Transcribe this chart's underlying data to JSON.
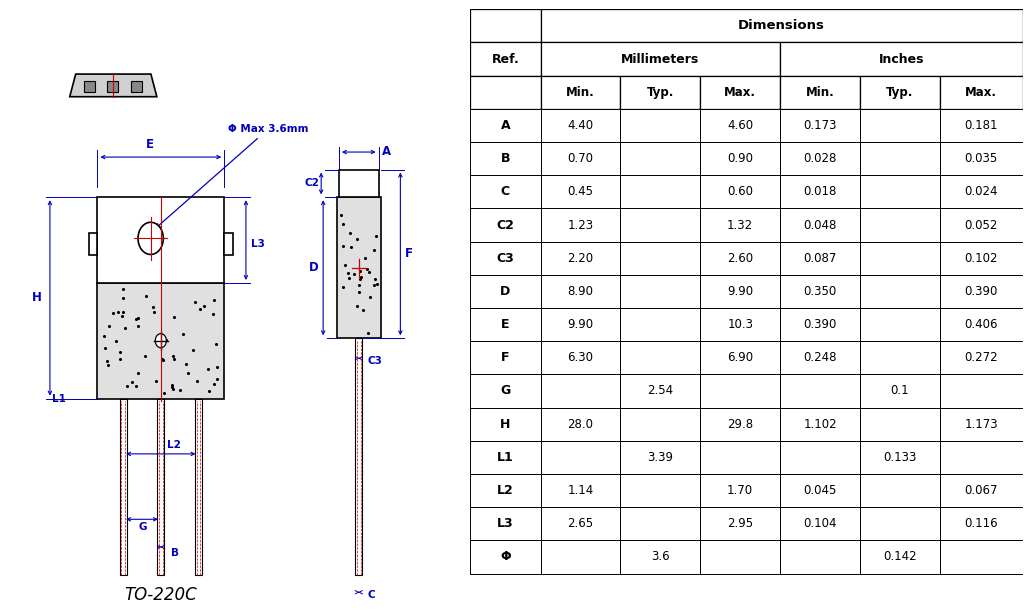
{
  "title": "TO-220C",
  "table_data": [
    [
      "A",
      "4.40",
      "",
      "4.60",
      "0.173",
      "",
      "0.181"
    ],
    [
      "B",
      "0.70",
      "",
      "0.90",
      "0.028",
      "",
      "0.035"
    ],
    [
      "C",
      "0.45",
      "",
      "0.60",
      "0.018",
      "",
      "0.024"
    ],
    [
      "C2",
      "1.23",
      "",
      "1.32",
      "0.048",
      "",
      "0.052"
    ],
    [
      "C3",
      "2.20",
      "",
      "2.60",
      "0.087",
      "",
      "0.102"
    ],
    [
      "D",
      "8.90",
      "",
      "9.90",
      "0.350",
      "",
      "0.390"
    ],
    [
      "E",
      "9.90",
      "",
      "10.3",
      "0.390",
      "",
      "0.406"
    ],
    [
      "F",
      "6.30",
      "",
      "6.90",
      "0.248",
      "",
      "0.272"
    ],
    [
      "G",
      "",
      "2.54",
      "",
      "",
      "0.1",
      ""
    ],
    [
      "H",
      "28.0",
      "",
      "29.8",
      "1.102",
      "",
      "1.173"
    ],
    [
      "L1",
      "",
      "3.39",
      "",
      "",
      "0.133",
      ""
    ],
    [
      "L2",
      "1.14",
      "",
      "1.70",
      "0.045",
      "",
      "0.067"
    ],
    [
      "L3",
      "2.65",
      "",
      "2.95",
      "0.104",
      "",
      "0.116"
    ],
    [
      "Φ",
      "",
      "3.6",
      "",
      "",
      "0.142",
      ""
    ]
  ],
  "blue": "#0000BB",
  "red": "#CC0000",
  "black": "#000000",
  "white": "#FFFFFF",
  "light_gray": "#E0E0E0",
  "phi_label": "Φ Max 3.6mm"
}
